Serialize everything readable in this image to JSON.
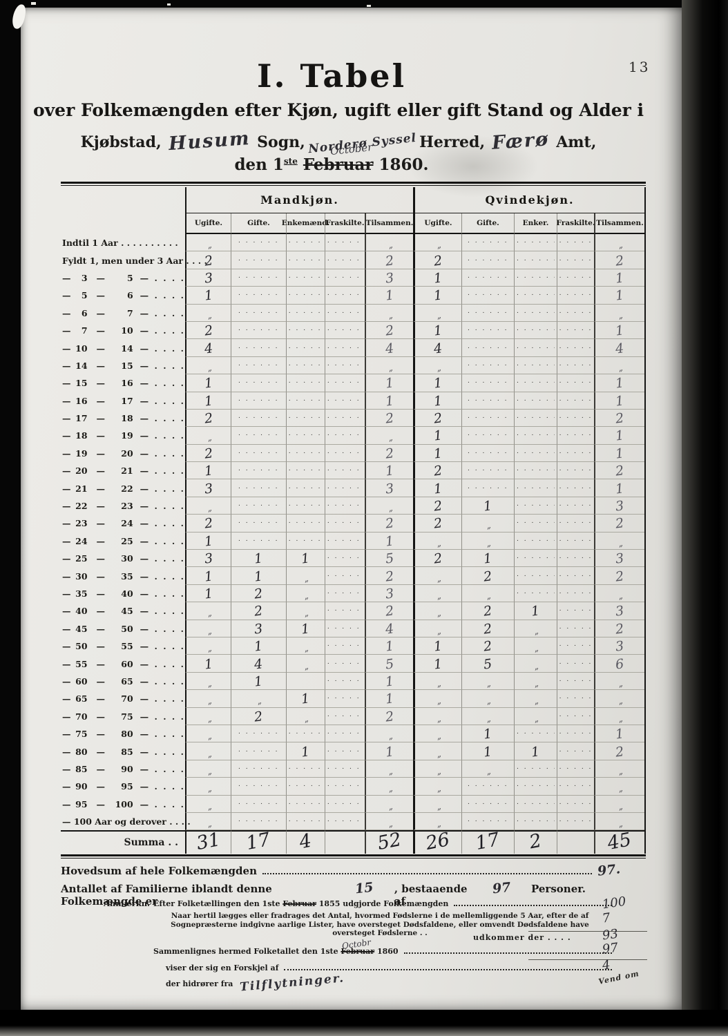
{
  "page_number": "13",
  "title": "I. Tabel",
  "subtitle": "over Folkemængden efter Kjøn, ugift eller gift Stand og Alder i",
  "location": {
    "kjobstad_label": "Kjøbstad,",
    "sogn_value": "Husum",
    "sogn_label": "Sogn,",
    "herred_value": "Norderø Syssel",
    "herred_label": "Herred,",
    "amt_value": "Færø",
    "amt_label": "Amt,"
  },
  "date_line": {
    "prefix": "den 1",
    "ordinal": "ste",
    "struck_month": "Februar",
    "inserted_month": "October",
    "year": "1860."
  },
  "table": {
    "group_headers": [
      "Mandkjøn.",
      "Qvindekjøn."
    ],
    "col_headers_m": [
      "Ugifte.",
      "Gifte.",
      "Enkemænd.",
      "Fraskilte.",
      "Tilsammen."
    ],
    "col_headers_q": [
      "Ugifte.",
      "Gifte.",
      "Enker.",
      "Fraskilte.",
      "Tilsammen."
    ],
    "rows": [
      {
        "label": "Indtil 1 Aar . . . . . . . . . .",
        "cells": [
          "„",
          "......",
          "......",
          "......",
          "„",
          "„",
          "......",
          "......",
          "......",
          "„"
        ]
      },
      {
        "label": "Fyldt 1, men under 3 Aar . . . .",
        "cells": [
          "2",
          "......",
          "......",
          "......",
          "2",
          "2",
          "......",
          "......",
          "......",
          "2"
        ]
      },
      {
        "from": "3",
        "to": "5",
        "cells": [
          "3",
          "......",
          "......",
          "......",
          "3",
          "1",
          "......",
          "......",
          "......",
          "1"
        ]
      },
      {
        "from": "5",
        "to": "6",
        "cells": [
          "1",
          "......",
          "......",
          "......",
          "1",
          "1",
          "......",
          "......",
          "......",
          "1"
        ]
      },
      {
        "from": "6",
        "to": "7",
        "cells": [
          "„",
          "......",
          "......",
          "......",
          "„",
          "„",
          "......",
          "......",
          "......",
          "„"
        ]
      },
      {
        "from": "7",
        "to": "10",
        "cells": [
          "2",
          "......",
          "......",
          "......",
          "2",
          "1",
          "......",
          "......",
          "......",
          "1"
        ]
      },
      {
        "from": "10",
        "to": "14",
        "cells": [
          "4",
          "......",
          "......",
          "......",
          "4",
          "4",
          "......",
          "......",
          "......",
          "4"
        ]
      },
      {
        "from": "14",
        "to": "15",
        "cells": [
          "„",
          "......",
          "......",
          "......",
          "„",
          "„",
          "......",
          "......",
          "......",
          "„"
        ]
      },
      {
        "from": "15",
        "to": "16",
        "cells": [
          "1",
          "......",
          "......",
          "......",
          "1",
          "1",
          "......",
          "......",
          "......",
          "1"
        ]
      },
      {
        "from": "16",
        "to": "17",
        "cells": [
          "1",
          "......",
          "......",
          "......",
          "1",
          "1",
          "......",
          "......",
          "......",
          "1"
        ]
      },
      {
        "from": "17",
        "to": "18",
        "cells": [
          "2",
          "......",
          "......",
          "......",
          "2",
          "2",
          "......",
          "......",
          "......",
          "2"
        ]
      },
      {
        "from": "18",
        "to": "19",
        "cells": [
          "„",
          "......",
          "......",
          "......",
          "„",
          "1",
          "......",
          "......",
          "......",
          "1"
        ]
      },
      {
        "from": "19",
        "to": "20",
        "cells": [
          "2",
          "......",
          "......",
          "......",
          "2",
          "1",
          "......",
          "......",
          "......",
          "1"
        ]
      },
      {
        "from": "20",
        "to": "21",
        "cells": [
          "1",
          "......",
          "......",
          "......",
          "1",
          "2",
          "......",
          "......",
          "......",
          "2"
        ]
      },
      {
        "from": "21",
        "to": "22",
        "cells": [
          "3",
          "......",
          "......",
          "......",
          "3",
          "1",
          "......",
          "......",
          "......",
          "1"
        ]
      },
      {
        "from": "22",
        "to": "23",
        "cells": [
          "„",
          "......",
          "......",
          "......",
          "„",
          "2",
          "1",
          "......",
          "......",
          "3"
        ]
      },
      {
        "from": "23",
        "to": "24",
        "cells": [
          "2",
          "......",
          "......",
          "......",
          "2",
          "2",
          "„",
          "......",
          "......",
          "2"
        ]
      },
      {
        "from": "24",
        "to": "25",
        "cells": [
          "1",
          "......",
          "......",
          "......",
          "1",
          "„",
          "„",
          "......",
          "......",
          "„"
        ]
      },
      {
        "from": "25",
        "to": "30",
        "cells": [
          "3",
          "1",
          "1",
          "......",
          "5",
          "2",
          "1",
          "......",
          "......",
          "3"
        ]
      },
      {
        "from": "30",
        "to": "35",
        "cells": [
          "1",
          "1",
          "„",
          "......",
          "2",
          "„",
          "2",
          "......",
          "......",
          "2"
        ]
      },
      {
        "from": "35",
        "to": "40",
        "cells": [
          "1",
          "2",
          "„",
          "......",
          "3",
          "„",
          "„",
          "......",
          "......",
          "„"
        ]
      },
      {
        "from": "40",
        "to": "45",
        "cells": [
          "„",
          "2",
          "„",
          "......",
          "2",
          "„",
          "2",
          "1",
          "......",
          "3"
        ]
      },
      {
        "from": "45",
        "to": "50",
        "cells": [
          "„",
          "3",
          "1",
          "......",
          "4",
          "„",
          "2",
          "„",
          "......",
          "2"
        ]
      },
      {
        "from": "50",
        "to": "55",
        "cells": [
          "„",
          "1",
          "„",
          "......",
          "1",
          "1",
          "2",
          "„",
          "......",
          "3"
        ]
      },
      {
        "from": "55",
        "to": "60",
        "cells": [
          "1",
          "4",
          "„",
          "......",
          "5",
          "1",
          "5",
          "„",
          "......",
          "6"
        ]
      },
      {
        "from": "60",
        "to": "65",
        "cells": [
          "„",
          "1",
          "",
          "......",
          "1",
          "„",
          "„",
          "„",
          "......",
          "„"
        ]
      },
      {
        "from": "65",
        "to": "70",
        "cells": [
          "„",
          "„",
          "1",
          "......",
          "1",
          "„",
          "„",
          "„",
          "......",
          "„"
        ]
      },
      {
        "from": "70",
        "to": "75",
        "cells": [
          "„",
          "2",
          "„",
          "......",
          "2",
          "„",
          "„",
          "„",
          "......",
          "„"
        ]
      },
      {
        "from": "75",
        "to": "80",
        "cells": [
          "„",
          "......",
          "......",
          "......",
          "„",
          "„",
          "1",
          "......",
          "......",
          "1"
        ]
      },
      {
        "from": "80",
        "to": "85",
        "cells": [
          "„",
          "......",
          "1",
          "......",
          "1",
          "„",
          "1",
          "1",
          "......",
          "2"
        ]
      },
      {
        "from": "85",
        "to": "90",
        "cells": [
          "„",
          "......",
          "......",
          "......",
          "„",
          "„",
          "„",
          "......",
          "......",
          "„"
        ]
      },
      {
        "from": "90",
        "to": "95",
        "cells": [
          "„",
          "......",
          "......",
          "......",
          "„",
          "„",
          "......",
          "......",
          "......",
          "„"
        ]
      },
      {
        "from": "95",
        "to": "100",
        "cells": [
          "„",
          "......",
          "......",
          "......",
          "„",
          "„",
          "......",
          "......",
          "......",
          "„"
        ]
      },
      {
        "label": "— 100 Aar og derover . . . .",
        "cells": [
          "„",
          "......",
          "......",
          "......",
          "„",
          "„",
          "......",
          "......",
          "......",
          "„"
        ]
      }
    ],
    "summa": {
      "label": "Summa . .",
      "cells": [
        "31",
        "17",
        "4",
        "",
        "52",
        "26",
        "17",
        "2",
        "",
        "45"
      ]
    }
  },
  "footer": {
    "hovedsum_label": "Hovedsum af hele Folkemængden",
    "hovedsum_value": "97.",
    "familie_pre": "Antallet af Familierne iblandt denne Folkemængde er",
    "familie_count": "15",
    "familie_mid": ", bestaaende af",
    "familie_persons": "97",
    "familie_post": "Personer.",
    "anm_label": "Anmærkn.",
    "anm1_pre": "Efter Folketællingen den 1ste",
    "anm1_struck": "Februar",
    "anm1_post": "1855 udgjorde Folkemængden",
    "anm1_value": "100",
    "anm2_line1": "Naar hertil lægges eller fradrages det Antal, hvormed Fødslerne i de mellemliggende 5 Aar, efter de af Sognepræsterne",
    "anm2_line2": "indgivne aarlige Lister, have oversteget Dødsfaldene, eller omvendt Dødsfaldene have oversteget Fødslerne . .",
    "anm2_value": "7",
    "udkommer_label": "udkommer der . . . .",
    "udkommer_value": "93",
    "saml_pre": "Sammenlignes hermed Folketallet den 1ste",
    "saml_struck": "Februar",
    "saml_inserted": "Octobr",
    "saml_post": "1860",
    "saml_value": "97",
    "forskjel_label": "viser der sig en Forskjel af",
    "forskjel_value": "4",
    "hidrorer_label": "der hidrører fra",
    "hidrorer_value": "Tilflytninger.",
    "vend_om": "Vend om"
  }
}
